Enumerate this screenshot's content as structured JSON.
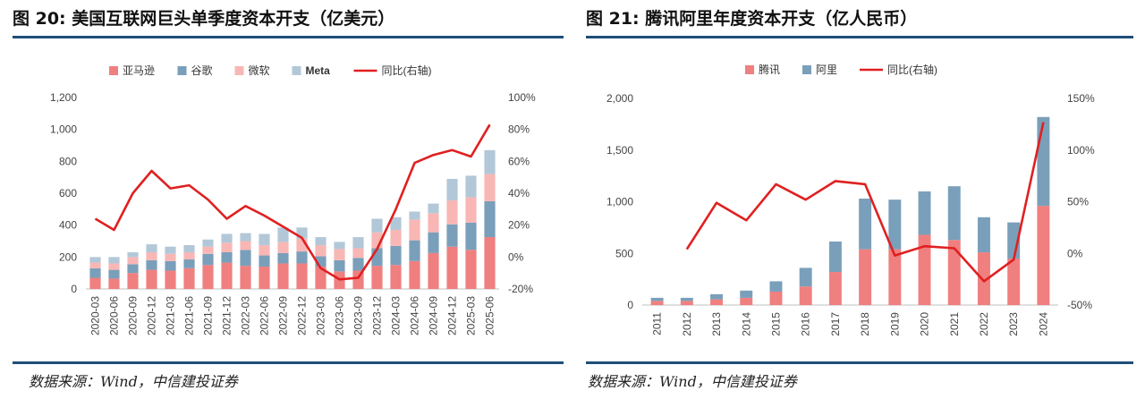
{
  "charts": {
    "left": {
      "title": "图 20: 美国互联网巨头单季度资本开支（亿美元）",
      "source": "数据来源：Wind，中信建投证券"
    },
    "right": {
      "title": "图 21: 腾讯阿里年度资本开支（亿人民币）",
      "source": "数据来源：Wind，中信建投证券"
    }
  },
  "chart_data": [
    {
      "type": "bar",
      "stacked": true,
      "title": "图 20: 美国互联网巨头单季度资本开支（亿美元）",
      "categories": [
        "2020-03",
        "2020-06",
        "2020-09",
        "2020-12",
        "2021-03",
        "2021-06",
        "2021-09",
        "2021-12",
        "2022-03",
        "2022-06",
        "2022-09",
        "2022-12",
        "2023-03",
        "2023-06",
        "2023-09",
        "2023-12",
        "2024-03",
        "2024-06",
        "2024-09",
        "2024-12",
        "2025-03",
        "2025-06"
      ],
      "series": [
        {
          "name": "亚马逊",
          "color": "#f07f7f",
          "values": [
            70,
            65,
            100,
            120,
            115,
            130,
            150,
            165,
            145,
            140,
            160,
            160,
            140,
            110,
            115,
            145,
            150,
            175,
            225,
            265,
            245,
            325
          ]
        },
        {
          "name": "谷歌",
          "color": "#7a9fba",
          "values": [
            60,
            55,
            55,
            60,
            60,
            55,
            70,
            65,
            100,
            70,
            65,
            75,
            65,
            70,
            80,
            110,
            120,
            130,
            130,
            140,
            170,
            225
          ]
        },
        {
          "name": "微软",
          "color": "#f8b7b5",
          "values": [
            35,
            40,
            45,
            50,
            45,
            45,
            45,
            60,
            55,
            65,
            70,
            80,
            70,
            70,
            60,
            100,
            100,
            130,
            120,
            150,
            160,
            170
          ]
        },
        {
          "name": "Meta",
          "color": "#b2c8d8",
          "values": [
            35,
            40,
            30,
            50,
            45,
            45,
            45,
            55,
            50,
            70,
            90,
            70,
            50,
            45,
            70,
            85,
            80,
            50,
            60,
            135,
            135,
            150
          ]
        },
        {
          "name": "同比(右轴)",
          "color": "#e02020",
          "axis": "right",
          "type": "line",
          "values": [
            24,
            17,
            40,
            54,
            43,
            45,
            36,
            24,
            32,
            26,
            19,
            12,
            -7,
            -14,
            -13,
            5,
            30,
            59,
            64,
            67,
            63,
            83
          ]
        }
      ],
      "ylim": [
        0,
        1200
      ],
      "yticks": [
        "0",
        "200",
        "400",
        "600",
        "800",
        "1,000",
        "1,200"
      ],
      "y2lim": [
        -20,
        100
      ],
      "y2ticks": [
        "-20%",
        "0%",
        "20%",
        "40%",
        "60%",
        "80%",
        "100%"
      ],
      "legend": "top"
    },
    {
      "type": "bar",
      "stacked": true,
      "title": "图 21: 腾讯阿里年度资本开支（亿人民币）",
      "categories": [
        "2011",
        "2012",
        "2013",
        "2014",
        "2015",
        "2016",
        "2017",
        "2018",
        "2019",
        "2020",
        "2021",
        "2022",
        "2023",
        "2024"
      ],
      "series": [
        {
          "name": "腾讯",
          "color": "#f07f7f",
          "values": [
            40,
            40,
            55,
            70,
            130,
            180,
            320,
            540,
            540,
            680,
            630,
            510,
            450,
            960
          ]
        },
        {
          "name": "阿里",
          "color": "#7a9fba",
          "values": [
            30,
            30,
            50,
            70,
            100,
            180,
            295,
            490,
            480,
            420,
            520,
            340,
            350,
            860
          ]
        },
        {
          "name": "同比(右轴)",
          "color": "#e02020",
          "axis": "right",
          "type": "line",
          "values": [
            null,
            4,
            49,
            32,
            67,
            52,
            70,
            67,
            -2,
            7,
            5,
            -27,
            -6,
            127
          ]
        }
      ],
      "ylim": [
        0,
        2000
      ],
      "yticks": [
        "0",
        "500",
        "1,000",
        "1,500",
        "2,000"
      ],
      "y2lim": [
        -50,
        150
      ],
      "y2ticks": [
        "-50%",
        "0%",
        "50%",
        "100%",
        "150%"
      ],
      "legend": "top"
    }
  ]
}
